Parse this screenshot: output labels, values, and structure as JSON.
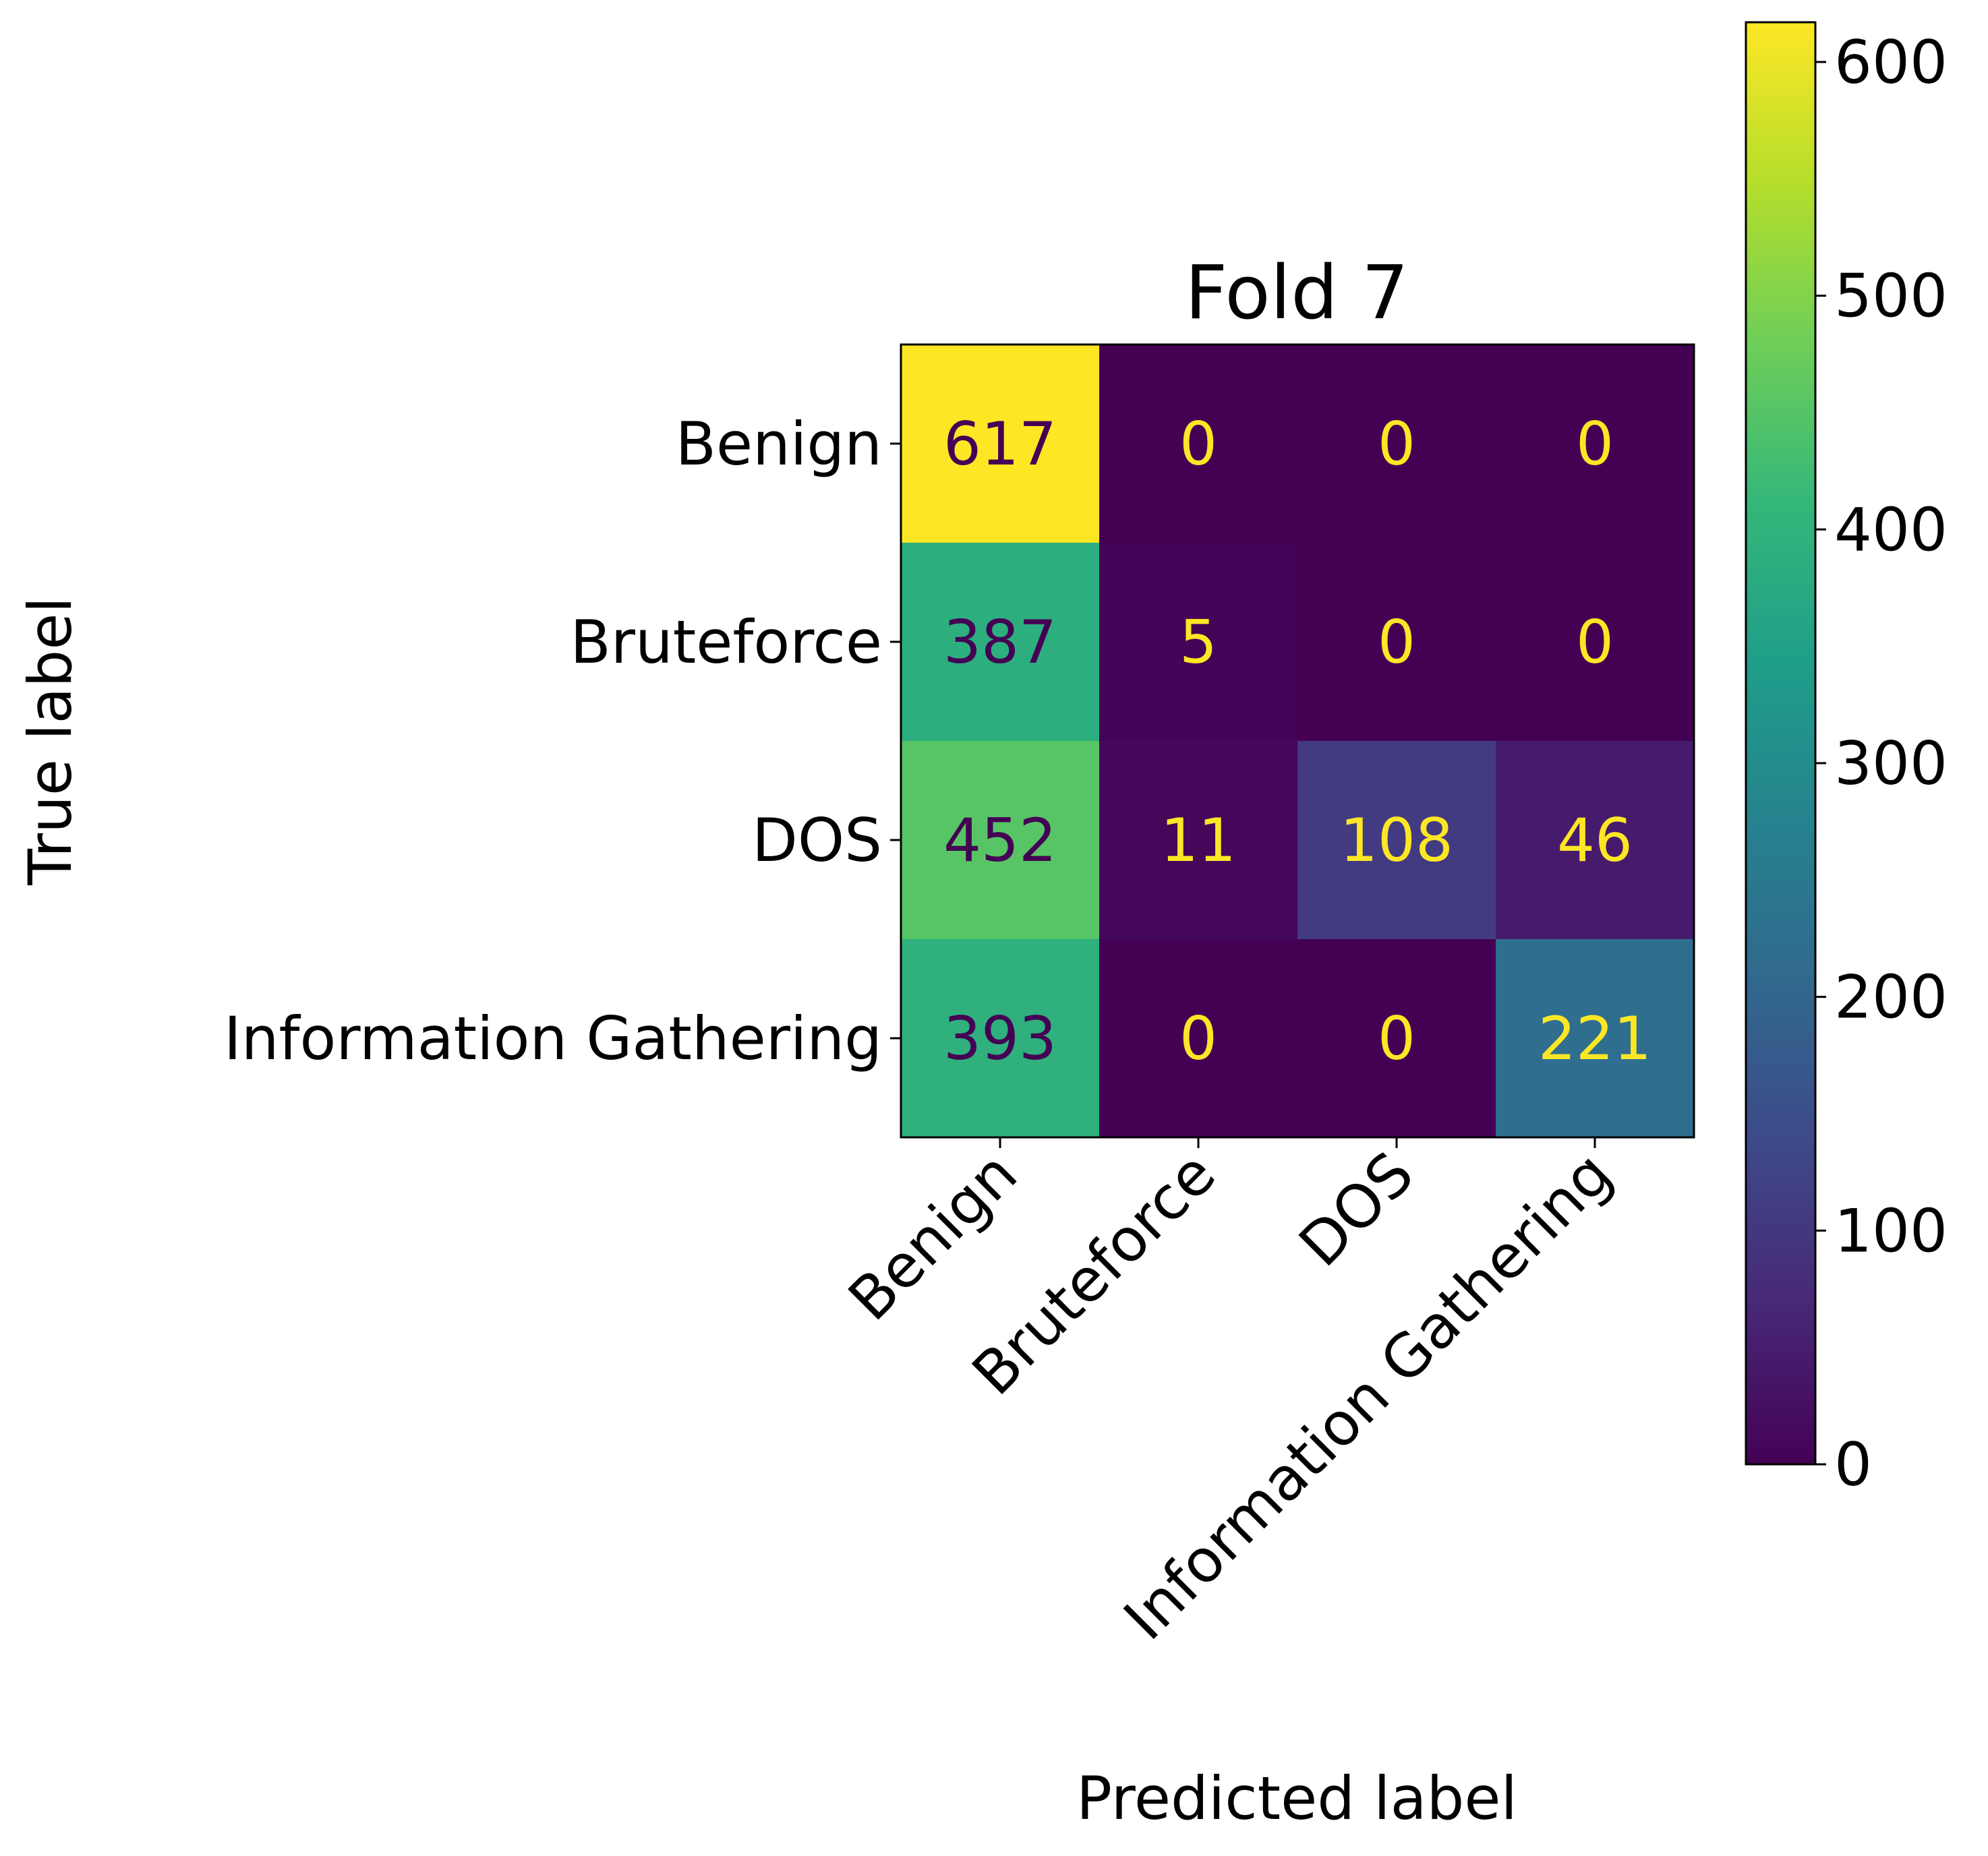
{
  "chart_data": {
    "type": "heatmap",
    "title": "Fold 7",
    "xlabel": "Predicted label",
    "ylabel": "True label",
    "x_categories": [
      "Benign",
      "Bruteforce",
      "DOS",
      "Information Gathering"
    ],
    "y_categories": [
      "Benign",
      "Bruteforce",
      "DOS",
      "Information Gathering"
    ],
    "matrix": [
      [
        617,
        0,
        0,
        0
      ],
      [
        387,
        5,
        0,
        0
      ],
      [
        452,
        11,
        108,
        46
      ],
      [
        393,
        0,
        0,
        221
      ]
    ],
    "colormap": "viridis",
    "colorbar": {
      "min": 0,
      "max": 617,
      "ticks": [
        0,
        100,
        200,
        300,
        400,
        500,
        600
      ],
      "tick_labels": [
        "0",
        "100",
        "200",
        "300",
        "400",
        "500",
        "600"
      ]
    },
    "label_colors": {
      "light": "#fde725",
      "dark": "#440154"
    }
  }
}
